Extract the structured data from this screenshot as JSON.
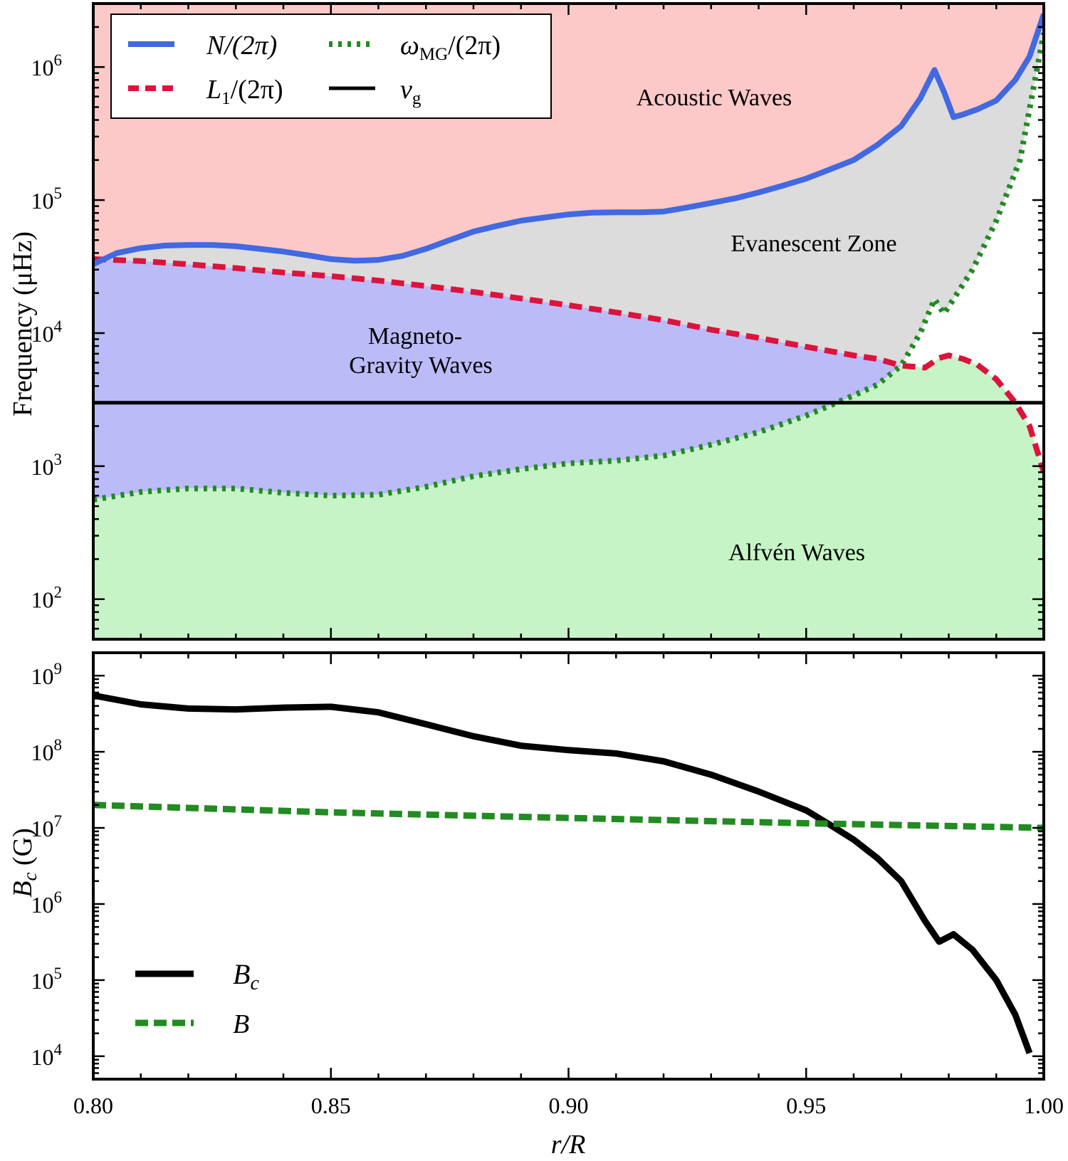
{
  "chart_data": [
    {
      "type": "line",
      "ylabel": "Frequency (μHz)",
      "yscale": "log",
      "xlim": [
        0.8,
        1.0
      ],
      "ylim": [
        50,
        3000000
      ],
      "yticks": [
        {
          "value": 100,
          "base": "10",
          "exp": "2"
        },
        {
          "value": 1000,
          "base": "10",
          "exp": "3"
        },
        {
          "value": 10000,
          "base": "10",
          "exp": "4"
        },
        {
          "value": 100000,
          "base": "10",
          "exp": "5"
        },
        {
          "value": 1000000,
          "base": "10",
          "exp": "6"
        }
      ],
      "regions": [
        {
          "label": "Acoustic Waves",
          "color": "#fdc8c8"
        },
        {
          "label": "Evanescent Zone",
          "color": "#dcdcdc"
        },
        {
          "label_line1": "Magneto-",
          "label_line2": "Gravity Waves",
          "color": "#bbbbf8"
        },
        {
          "label": "Alfvén Waves",
          "color": "#c6f4c6"
        }
      ],
      "legend": {
        "placement": "top-left",
        "entries": [
          {
            "key": "N",
            "label_main": "N/(2π)"
          },
          {
            "key": "L1",
            "label_main": "L",
            "label_sub": "1",
            "label_tail": "/(2π)"
          },
          {
            "key": "wmg",
            "label_main": "ω",
            "label_sub": "MG",
            "label_tail": "/(2π)"
          },
          {
            "key": "nug",
            "label_main": "ν",
            "label_sub": "g"
          }
        ]
      },
      "series": [
        {
          "key": "N",
          "color": "#4169e1",
          "style": "solid",
          "x": [
            0.8,
            0.805,
            0.81,
            0.815,
            0.82,
            0.825,
            0.83,
            0.835,
            0.84,
            0.845,
            0.85,
            0.855,
            0.86,
            0.865,
            0.87,
            0.875,
            0.88,
            0.885,
            0.89,
            0.895,
            0.9,
            0.905,
            0.91,
            0.915,
            0.92,
            0.925,
            0.93,
            0.935,
            0.94,
            0.945,
            0.95,
            0.955,
            0.96,
            0.965,
            0.97,
            0.974,
            0.977,
            0.979,
            0.981,
            0.983,
            0.986,
            0.99,
            0.994,
            0.997,
            1.0
          ],
          "y": [
            33000,
            40000,
            43500,
            45500,
            46000,
            46000,
            45000,
            43000,
            41000,
            38500,
            36000,
            35000,
            35500,
            38000,
            43000,
            50000,
            58000,
            64000,
            70000,
            74000,
            78000,
            80500,
            81000,
            81000,
            82000,
            88000,
            95000,
            103000,
            114000,
            128000,
            145000,
            170000,
            200000,
            260000,
            360000,
            580000,
            950000,
            650000,
            420000,
            440000,
            480000,
            560000,
            800000,
            1200000,
            2500000
          ]
        },
        {
          "key": "L1",
          "color": "#dc143c",
          "style": "dashed",
          "x": [
            0.8,
            0.81,
            0.82,
            0.83,
            0.84,
            0.85,
            0.86,
            0.87,
            0.88,
            0.89,
            0.9,
            0.91,
            0.92,
            0.93,
            0.94,
            0.95,
            0.96,
            0.965,
            0.97,
            0.975,
            0.978,
            0.98,
            0.983,
            0.986,
            0.99,
            0.994,
            0.997,
            1.0
          ],
          "y": [
            36000,
            34800,
            32900,
            30800,
            28500,
            26800,
            24800,
            22600,
            20400,
            18200,
            16200,
            14300,
            12500,
            10600,
            9200,
            7900,
            6800,
            6400,
            5700,
            5500,
            6500,
            6800,
            6400,
            5800,
            4500,
            3000,
            2000,
            900
          ]
        },
        {
          "key": "wmg",
          "color": "#228b22",
          "style": "dotted",
          "x": [
            0.8,
            0.81,
            0.82,
            0.83,
            0.84,
            0.85,
            0.86,
            0.87,
            0.88,
            0.89,
            0.9,
            0.91,
            0.92,
            0.93,
            0.94,
            0.95,
            0.955,
            0.96,
            0.965,
            0.97,
            0.974,
            0.977,
            0.979,
            0.981,
            0.985,
            0.99,
            0.995,
            1.0
          ],
          "y": [
            560,
            640,
            680,
            680,
            630,
            600,
            610,
            700,
            840,
            950,
            1050,
            1100,
            1200,
            1450,
            1800,
            2400,
            2850,
            3400,
            4100,
            5700,
            10000,
            18000,
            14000,
            18000,
            30000,
            70000,
            200000,
            1800000
          ]
        },
        {
          "key": "nug",
          "color": "#000000",
          "style": "solid",
          "x": [
            0.8,
            1.0
          ],
          "y": [
            3000,
            3000
          ]
        }
      ]
    },
    {
      "type": "line",
      "xlabel": "r/R",
      "ylabel_main": "B",
      "ylabel_sub": "c",
      "ylabel_unit": "(G)",
      "yscale": "log",
      "xlim": [
        0.8,
        1.0
      ],
      "ylim": [
        5000,
        2000000000
      ],
      "xticks": [
        {
          "value": 0.8,
          "label": "0.80"
        },
        {
          "value": 0.85,
          "label": "0.85"
        },
        {
          "value": 0.9,
          "label": "0.90"
        },
        {
          "value": 0.95,
          "label": "0.95"
        },
        {
          "value": 1.0,
          "label": "1.00"
        }
      ],
      "yticks": [
        {
          "value": 10000,
          "base": "10",
          "exp": "4"
        },
        {
          "value": 100000,
          "base": "10",
          "exp": "5"
        },
        {
          "value": 1000000,
          "base": "10",
          "exp": "6"
        },
        {
          "value": 10000000,
          "base": "10",
          "exp": "7"
        },
        {
          "value": 100000000,
          "base": "10",
          "exp": "8"
        },
        {
          "value": 1000000000,
          "base": "10",
          "exp": "9"
        }
      ],
      "legend": {
        "placement": "lower-left",
        "entries": [
          {
            "key": "Bc",
            "label_main": "B",
            "label_sub": "c"
          },
          {
            "key": "B",
            "label_main": "B"
          }
        ]
      },
      "series": [
        {
          "key": "Bc",
          "color": "#000000",
          "style": "solid",
          "x": [
            0.8,
            0.81,
            0.82,
            0.83,
            0.84,
            0.85,
            0.86,
            0.87,
            0.88,
            0.89,
            0.9,
            0.91,
            0.92,
            0.93,
            0.94,
            0.95,
            0.955,
            0.96,
            0.965,
            0.97,
            0.975,
            0.978,
            0.981,
            0.985,
            0.99,
            0.994,
            0.997
          ],
          "y": [
            550000000,
            420000000,
            370000000,
            360000000,
            380000000,
            390000000,
            330000000,
            230000000,
            160000000,
            120000000,
            105000000,
            95000000,
            75000000,
            50000000,
            30000000,
            17000000,
            11000000,
            7000000,
            4000000,
            2000000,
            600000,
            320000,
            400000,
            250000,
            100000,
            35000,
            11000
          ]
        },
        {
          "key": "B",
          "color": "#228b22",
          "style": "dashed",
          "x": [
            0.8,
            0.85,
            0.9,
            0.95,
            1.0
          ],
          "y": [
            20000000,
            16000000,
            13500000,
            11500000,
            10000000
          ]
        }
      ]
    }
  ]
}
